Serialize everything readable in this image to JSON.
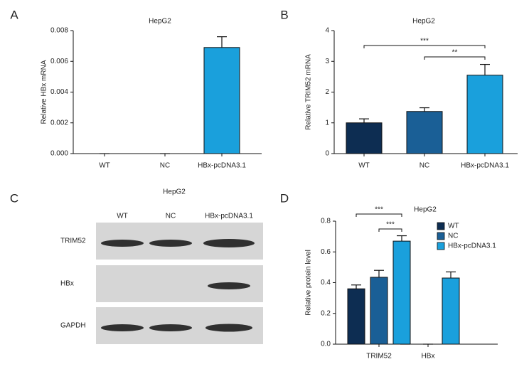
{
  "chart_data": [
    {
      "type": "bar",
      "panel": "A",
      "title": "HepG2",
      "ylabel": "Relative HBx mRNA",
      "categories": [
        "WT",
        "NC",
        "HBx-pcDNA3.1"
      ],
      "values": [
        0,
        0,
        0.0069
      ],
      "errors": [
        0,
        0,
        0.0007
      ],
      "colors": [
        "#1aa0dc",
        "#1aa0dc",
        "#1aa0dc"
      ],
      "ylim": [
        0,
        0.008
      ],
      "yticks": [
        {
          "value": 0,
          "label": "0.000"
        },
        0.002,
        0.004,
        0.006,
        0.008
      ]
    },
    {
      "type": "bar",
      "panel": "B",
      "title": "HepG2",
      "ylabel": "Relative TRIM52 mRNA",
      "categories": [
        "WT",
        "NC",
        "HBx-pcDNA3.1"
      ],
      "values": [
        1.0,
        1.37,
        2.55
      ],
      "errors": [
        0.13,
        0.12,
        0.35
      ],
      "colors": [
        "#0d2d52",
        "#1a5f96",
        "#1aa0dc"
      ],
      "ylim": [
        0,
        4
      ],
      "yticks": [
        0,
        1,
        2,
        3,
        4
      ],
      "annotations": [
        "***",
        "**"
      ]
    },
    {
      "type": "grouped_bar",
      "panel": "D",
      "title": "HepG2",
      "ylabel": "Relative protein level",
      "categories": [
        "TRIM52",
        "HBx"
      ],
      "series": [
        {
          "name": "WT",
          "color": "#0d2d52",
          "values": [
            0.36,
            0
          ],
          "errors": [
            0.025,
            0
          ]
        },
        {
          "name": "NC",
          "color": "#1a5f96",
          "values": [
            0.435,
            0
          ],
          "errors": [
            0.045,
            0
          ]
        },
        {
          "name": "HBx-pcDNA3.1",
          "color": "#1aa0dc",
          "values": [
            0.67,
            0.43
          ],
          "errors": [
            0.035,
            0.04
          ]
        }
      ],
      "ylim": [
        0,
        0.8
      ],
      "yticks": [
        {
          "value": 0,
          "label": "0.0"
        },
        0.2,
        0.4,
        0.6,
        0.8
      ],
      "annotations": [
        "***",
        "***"
      ],
      "legend": "top-right"
    }
  ],
  "blot": {
    "panel": "C",
    "title": "HepG2",
    "lanes": [
      "WT",
      "NC",
      "HBx-pcDNA3.1"
    ],
    "rows": [
      "TRIM52",
      "HBx",
      "GAPDH"
    ]
  }
}
